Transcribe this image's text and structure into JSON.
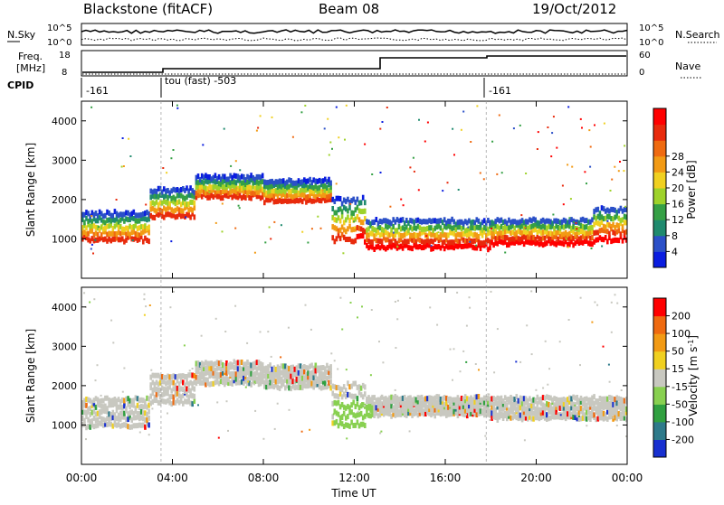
{
  "header": {
    "station": "Blackstone (fitACF)",
    "beam": "Beam 08",
    "date": "19/Oct/2012"
  },
  "noise_panel": {
    "left_label": "N.Sky",
    "right_label": "N.Search",
    "left_ticks": [
      "10^5",
      "10^0"
    ],
    "right_ticks": [
      "10^5",
      "10^0"
    ]
  },
  "freq_panel": {
    "left_label_1": "Freq.",
    "left_label_2": "[MHz]",
    "right_label": "Nave",
    "left_ticks": [
      "18",
      "8"
    ],
    "right_ticks": [
      "60",
      "0"
    ]
  },
  "cpid_panel": {
    "label": "CPID",
    "segments": [
      {
        "text": "-161",
        "start_hour": 0
      },
      {
        "text": "tou (fast) -503",
        "start_hour": 3.5
      },
      {
        "text": "-161",
        "start_hour": 17.8
      }
    ]
  },
  "chart_data": [
    {
      "type": "heatmap",
      "name": "power",
      "ylabel": "Slant Range [km]",
      "y_ticks": [
        "1000",
        "2000",
        "3000",
        "4000"
      ],
      "yrange": [
        0,
        4500
      ],
      "colorbar": {
        "label": "Power [dB]",
        "ticks": [
          "4",
          "8",
          "12",
          "16",
          "20",
          "24",
          "28"
        ],
        "colors": [
          "#0a1de0",
          "#2b50c8",
          "#1f8a6e",
          "#35a045",
          "#9ed22a",
          "#f0d020",
          "#f29a14",
          "#ef6a10",
          "#e82a0c",
          "#ff0000"
        ]
      },
      "bands": [
        {
          "t0": 0.0,
          "t1": 3.0,
          "r0": 900,
          "r1": 1700
        },
        {
          "t0": 3.0,
          "t1": 5.0,
          "r0": 1500,
          "r1": 2300
        },
        {
          "t0": 5.0,
          "t1": 8.0,
          "r0": 2000,
          "r1": 2600
        },
        {
          "t0": 8.0,
          "t1": 11.0,
          "r0": 1900,
          "r1": 2500
        },
        {
          "t0": 11.0,
          "t1": 12.5,
          "r0": 900,
          "r1": 2100
        },
        {
          "t0": 12.5,
          "t1": 18.0,
          "r0": 700,
          "r1": 1500
        },
        {
          "t0": 18.0,
          "t1": 22.5,
          "r0": 800,
          "r1": 1500
        },
        {
          "t0": 22.5,
          "t1": 24.0,
          "r0": 900,
          "r1": 1800
        }
      ]
    },
    {
      "type": "heatmap",
      "name": "velocity",
      "ylabel": "Slant Range [km]",
      "y_ticks": [
        "1000",
        "2000",
        "3000",
        "4000"
      ],
      "yrange": [
        0,
        4500
      ],
      "colorbar": {
        "label": "Velocity [m s^-1]",
        "ticks": [
          "200",
          "100",
          "50",
          "15",
          "-15",
          "-50",
          "-100",
          "-200"
        ],
        "colors": [
          "#1830d0",
          "#2e7a8a",
          "#30a040",
          "#88d050",
          "#c8c8c0",
          "#f0d020",
          "#f29a14",
          "#ef6a10",
          "#ff0000"
        ]
      },
      "bands": [
        {
          "t0": 0.0,
          "t1": 3.0,
          "r0": 900,
          "r1": 1700
        },
        {
          "t0": 3.0,
          "t1": 5.0,
          "r0": 1500,
          "r1": 2300
        },
        {
          "t0": 5.0,
          "t1": 8.0,
          "r0": 2000,
          "r1": 2600
        },
        {
          "t0": 8.0,
          "t1": 11.0,
          "r0": 1900,
          "r1": 2500
        },
        {
          "t0": 11.0,
          "t1": 12.5,
          "r0": 900,
          "r1": 2100
        },
        {
          "t0": 12.5,
          "t1": 18.0,
          "r0": 1200,
          "r1": 1700
        },
        {
          "t0": 18.0,
          "t1": 24.0,
          "r0": 1100,
          "r1": 1700
        }
      ]
    }
  ],
  "x_axis": {
    "label": "Time UT",
    "ticks": [
      "00:00",
      "04:00",
      "08:00",
      "12:00",
      "16:00",
      "20:00",
      "00:00"
    ],
    "range_hours": [
      0,
      24
    ]
  }
}
